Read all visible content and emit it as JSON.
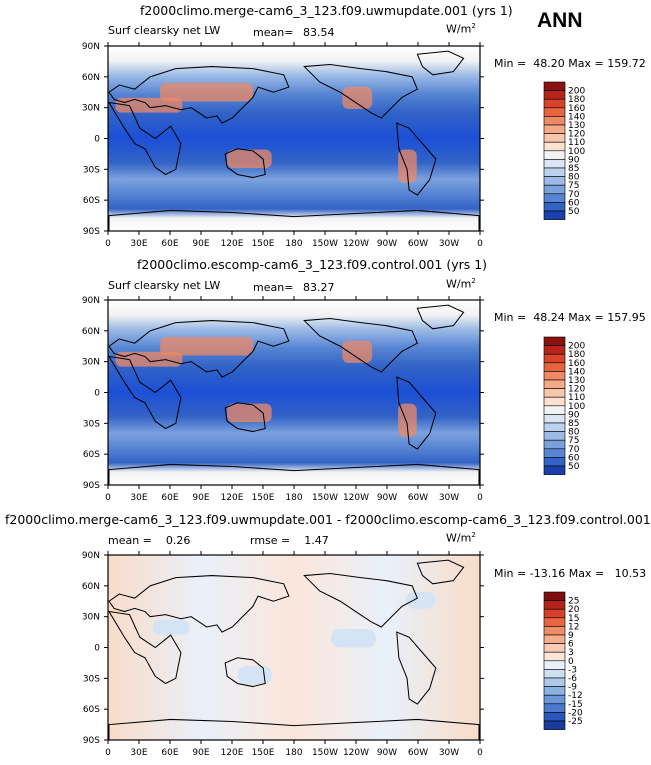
{
  "season": "ANN",
  "colors": {
    "map_lo": "#1c4fd6",
    "map_mid": "#dfe9f6",
    "map_hi": "#ee8a66",
    "diff_pos": "#f9dcc8",
    "diff_neg": "#d4e4f6",
    "land_line": "#000000"
  },
  "panels": [
    {
      "title": "f2000climo.merge-cam6_3_123.f09.uwmupdate.001 (yrs 1)",
      "variable": "Surf clearsky net LW",
      "mean_label": "mean=",
      "mean": "83.54",
      "units": "W/m",
      "units_exp": "2",
      "min_label": "Min =",
      "min": "48.20",
      "max_label": "Max =",
      "max": "159.72",
      "colorbar": {
        "labels": [
          "200",
          "180",
          "160",
          "140",
          "130",
          "120",
          "110",
          "100",
          "90",
          "85",
          "80",
          "75",
          "70",
          "60",
          "50"
        ],
        "colors": [
          "#8b1010",
          "#b9241a",
          "#d8432b",
          "#e6653e",
          "#ee8a66",
          "#f4a987",
          "#f8c6ab",
          "#fbe1d2",
          "#f2f2f2",
          "#dbe5f3",
          "#bcd2ee",
          "#9bbae6",
          "#7ba1dd",
          "#5784d3",
          "#3263c6",
          "#1c3fae"
        ]
      }
    },
    {
      "title": "f2000climo.escomp-cam6_3_123.f09.control.001 (yrs 1)",
      "variable": "Surf clearsky net LW",
      "mean_label": "mean=",
      "mean": "83.27",
      "units": "W/m",
      "units_exp": "2",
      "min_label": "Min =",
      "min": "48.24",
      "max_label": "Max =",
      "max": "157.95",
      "colorbar": {
        "labels": [
          "200",
          "180",
          "160",
          "140",
          "130",
          "120",
          "110",
          "100",
          "90",
          "85",
          "80",
          "75",
          "70",
          "60",
          "50"
        ],
        "colors": [
          "#8b1010",
          "#b9241a",
          "#d8432b",
          "#e6653e",
          "#ee8a66",
          "#f4a987",
          "#f8c6ab",
          "#fbe1d2",
          "#f2f2f2",
          "#dbe5f3",
          "#bcd2ee",
          "#9bbae6",
          "#7ba1dd",
          "#5784d3",
          "#3263c6",
          "#1c3fae"
        ]
      }
    },
    {
      "title": "f2000climo.merge-cam6_3_123.f09.uwmupdate.001 - f2000climo.escomp-cam6_3_123.f09.control.001",
      "variable": "",
      "mean_label": "mean =",
      "mean": "0.26",
      "rmse_label": "rmse =",
      "rmse": "1.47",
      "units": "W/m",
      "units_exp": "2",
      "min_label": "Min =",
      "min": "-13.16",
      "max_label": "Max =",
      "max": "10.53",
      "colorbar": {
        "labels": [
          "25",
          "20",
          "15",
          "12",
          "9",
          "6",
          "3",
          "0",
          "-3",
          "-6",
          "-9",
          "-12",
          "-15",
          "-20",
          "-25"
        ],
        "colors": [
          "#7c0e0e",
          "#b3221b",
          "#d5402a",
          "#e7663f",
          "#ef8d68",
          "#f4ad8d",
          "#f8ccb4",
          "#fbe6da",
          "#e9f0fa",
          "#cddff3",
          "#aec9ec",
          "#8cb1e3",
          "#6b97d9",
          "#4b7acc",
          "#2b57bb",
          "#1a3a9c"
        ]
      }
    }
  ],
  "lon_labels": [
    "0",
    "30E",
    "60E",
    "90E",
    "120E",
    "150E",
    "180",
    "150W",
    "120W",
    "90W",
    "60W",
    "30W",
    "0"
  ],
  "lat_labels": [
    "90N",
    "60N",
    "30N",
    "0",
    "30S",
    "60S",
    "90S"
  ]
}
